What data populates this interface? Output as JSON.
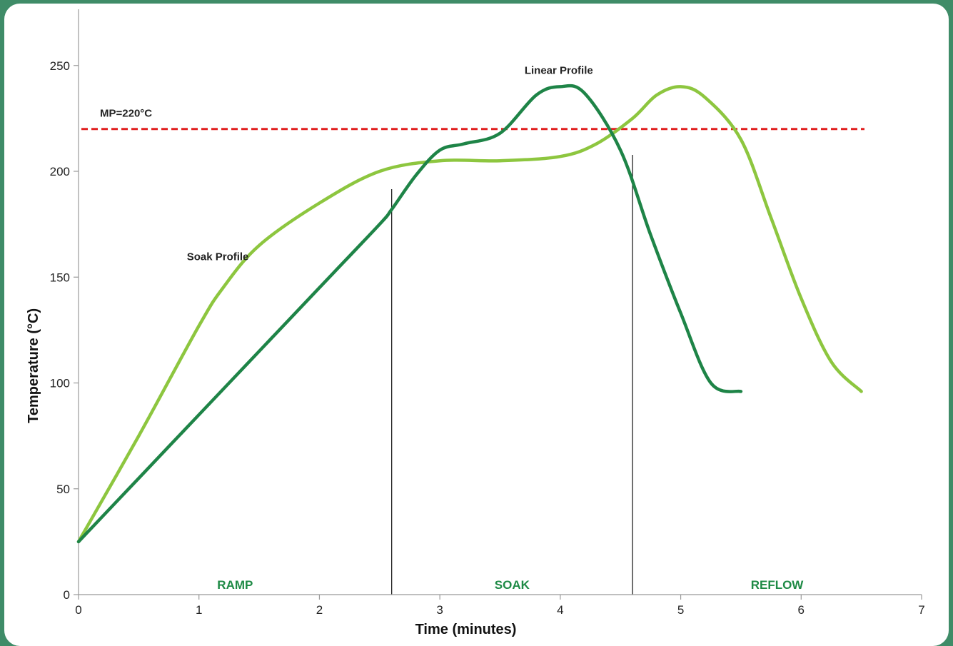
{
  "chart_data": {
    "type": "line",
    "title": "",
    "xlabel": "Time (minutes)",
    "ylabel": "Temperature (°C)",
    "xlim": [
      0,
      7
    ],
    "ylim": [
      0,
      250
    ],
    "x_ticks": [
      0,
      1,
      2,
      3,
      4,
      5,
      6,
      7
    ],
    "y_ticks": [
      0,
      50,
      100,
      150,
      200,
      250
    ],
    "grid": false,
    "legend": "none",
    "series": [
      {
        "name": "Linear Profile",
        "color": "#1e8447",
        "x": [
          0,
          0.5,
          1,
          1.5,
          2,
          2.5,
          2.6,
          2.8,
          3,
          3.2,
          3.5,
          3.8,
          4.0,
          4.2,
          4.5,
          4.75,
          5.0,
          5.25,
          5.5
        ],
        "y": [
          25,
          55,
          85,
          115,
          145,
          175,
          182,
          198,
          210,
          213,
          218,
          236,
          240,
          237,
          210,
          170,
          133,
          100,
          96
        ]
      },
      {
        "name": "Soak Profile",
        "color": "#8dc63f",
        "x": [
          0,
          0.5,
          1,
          1.2,
          1.5,
          2,
          2.5,
          3,
          3.5,
          4,
          4.3,
          4.6,
          4.8,
          5.0,
          5.2,
          5.5,
          5.75,
          6.0,
          6.25,
          6.5
        ],
        "y": [
          25,
          75,
          127,
          145,
          165,
          185,
          200,
          205,
          205,
          207,
          213,
          225,
          236,
          240,
          235,
          215,
          178,
          140,
          110,
          96
        ]
      }
    ],
    "reference_line": {
      "label": "MP=220°C",
      "y": 220,
      "color": "#e02020"
    },
    "phase_boundaries": [
      2.6,
      4.6
    ],
    "phases": [
      {
        "label": "RAMP",
        "x": 1.3
      },
      {
        "label": "SOAK",
        "x": 3.6
      },
      {
        "label": "REFLOW",
        "x": 5.8
      }
    ]
  }
}
